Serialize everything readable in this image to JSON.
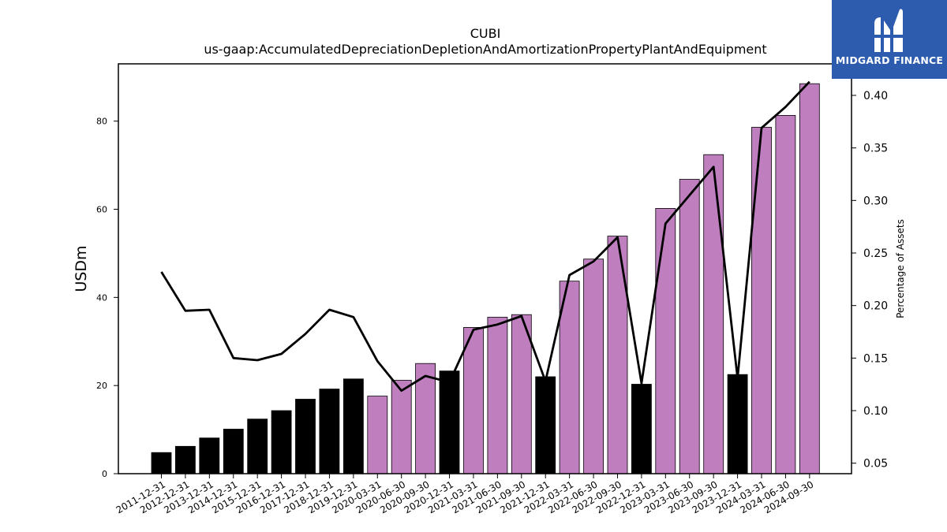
{
  "brand": {
    "name": "MIDGARD FINANCE",
    "color": "#2d5cae",
    "icon": "midgard-m-logo-icon"
  },
  "chart_data": {
    "type": "bar",
    "title": "CUBI",
    "subtitle": "us-gaap:AccumulatedDepreciationDepletionAndAmortizationPropertyPlantAndEquipment",
    "ylabel": "USDm",
    "y2label": "Percentage of Assets",
    "ylim": [
      0,
      93
    ],
    "y2lim": [
      0.04,
      0.43
    ],
    "yticks": [
      0,
      20,
      40,
      60,
      80
    ],
    "y2ticks": [
      "0.05",
      "0.10",
      "0.15",
      "0.20",
      "0.25",
      "0.30",
      "0.35",
      "0.40"
    ],
    "colors": {
      "annual": "#000000",
      "quarterly": "#bf7fbf",
      "line": "#000000"
    },
    "categories": [
      "2011-12-31",
      "2012-12-31",
      "2013-12-31",
      "2014-12-31",
      "2015-12-31",
      "2016-12-31",
      "2017-12-31",
      "2018-12-31",
      "2019-12-31",
      "2020-03-31",
      "2020-06-30",
      "2020-09-30",
      "2020-12-31",
      "2021-03-31",
      "2021-06-30",
      "2021-09-30",
      "2021-12-31",
      "2022-03-31",
      "2022-06-30",
      "2022-09-30",
      "2022-12-31",
      "2023-03-31",
      "2023-06-30",
      "2023-09-30",
      "2023-12-31",
      "2024-03-31",
      "2024-06-30",
      "2024-09-30"
    ],
    "series": [
      {
        "type": "bar",
        "values": [
          4.8,
          6.2,
          8.1,
          10.1,
          12.4,
          14.3,
          16.9,
          19.2,
          21.5,
          17.6,
          21.2,
          25.0,
          23.3,
          33.2,
          35.5,
          36.1,
          22.0,
          43.7,
          48.7,
          53.9,
          20.3,
          60.2,
          66.8,
          72.4,
          22.5,
          78.6,
          81.3,
          88.5
        ],
        "period": [
          "annual",
          "annual",
          "annual",
          "annual",
          "annual",
          "annual",
          "annual",
          "annual",
          "annual",
          "quarterly",
          "quarterly",
          "quarterly",
          "annual",
          "quarterly",
          "quarterly",
          "quarterly",
          "annual",
          "quarterly",
          "quarterly",
          "quarterly",
          "annual",
          "quarterly",
          "quarterly",
          "quarterly",
          "annual",
          "quarterly",
          "quarterly",
          "quarterly"
        ]
      },
      {
        "type": "line",
        "axis": "right",
        "values": [
          0.232,
          0.195,
          0.196,
          0.15,
          0.148,
          0.154,
          0.173,
          0.196,
          0.189,
          0.147,
          0.119,
          0.133,
          0.127,
          0.177,
          0.182,
          0.19,
          0.128,
          0.229,
          0.242,
          0.265,
          0.126,
          0.278,
          0.305,
          0.332,
          0.131,
          0.369,
          0.389,
          0.413
        ]
      }
    ]
  }
}
